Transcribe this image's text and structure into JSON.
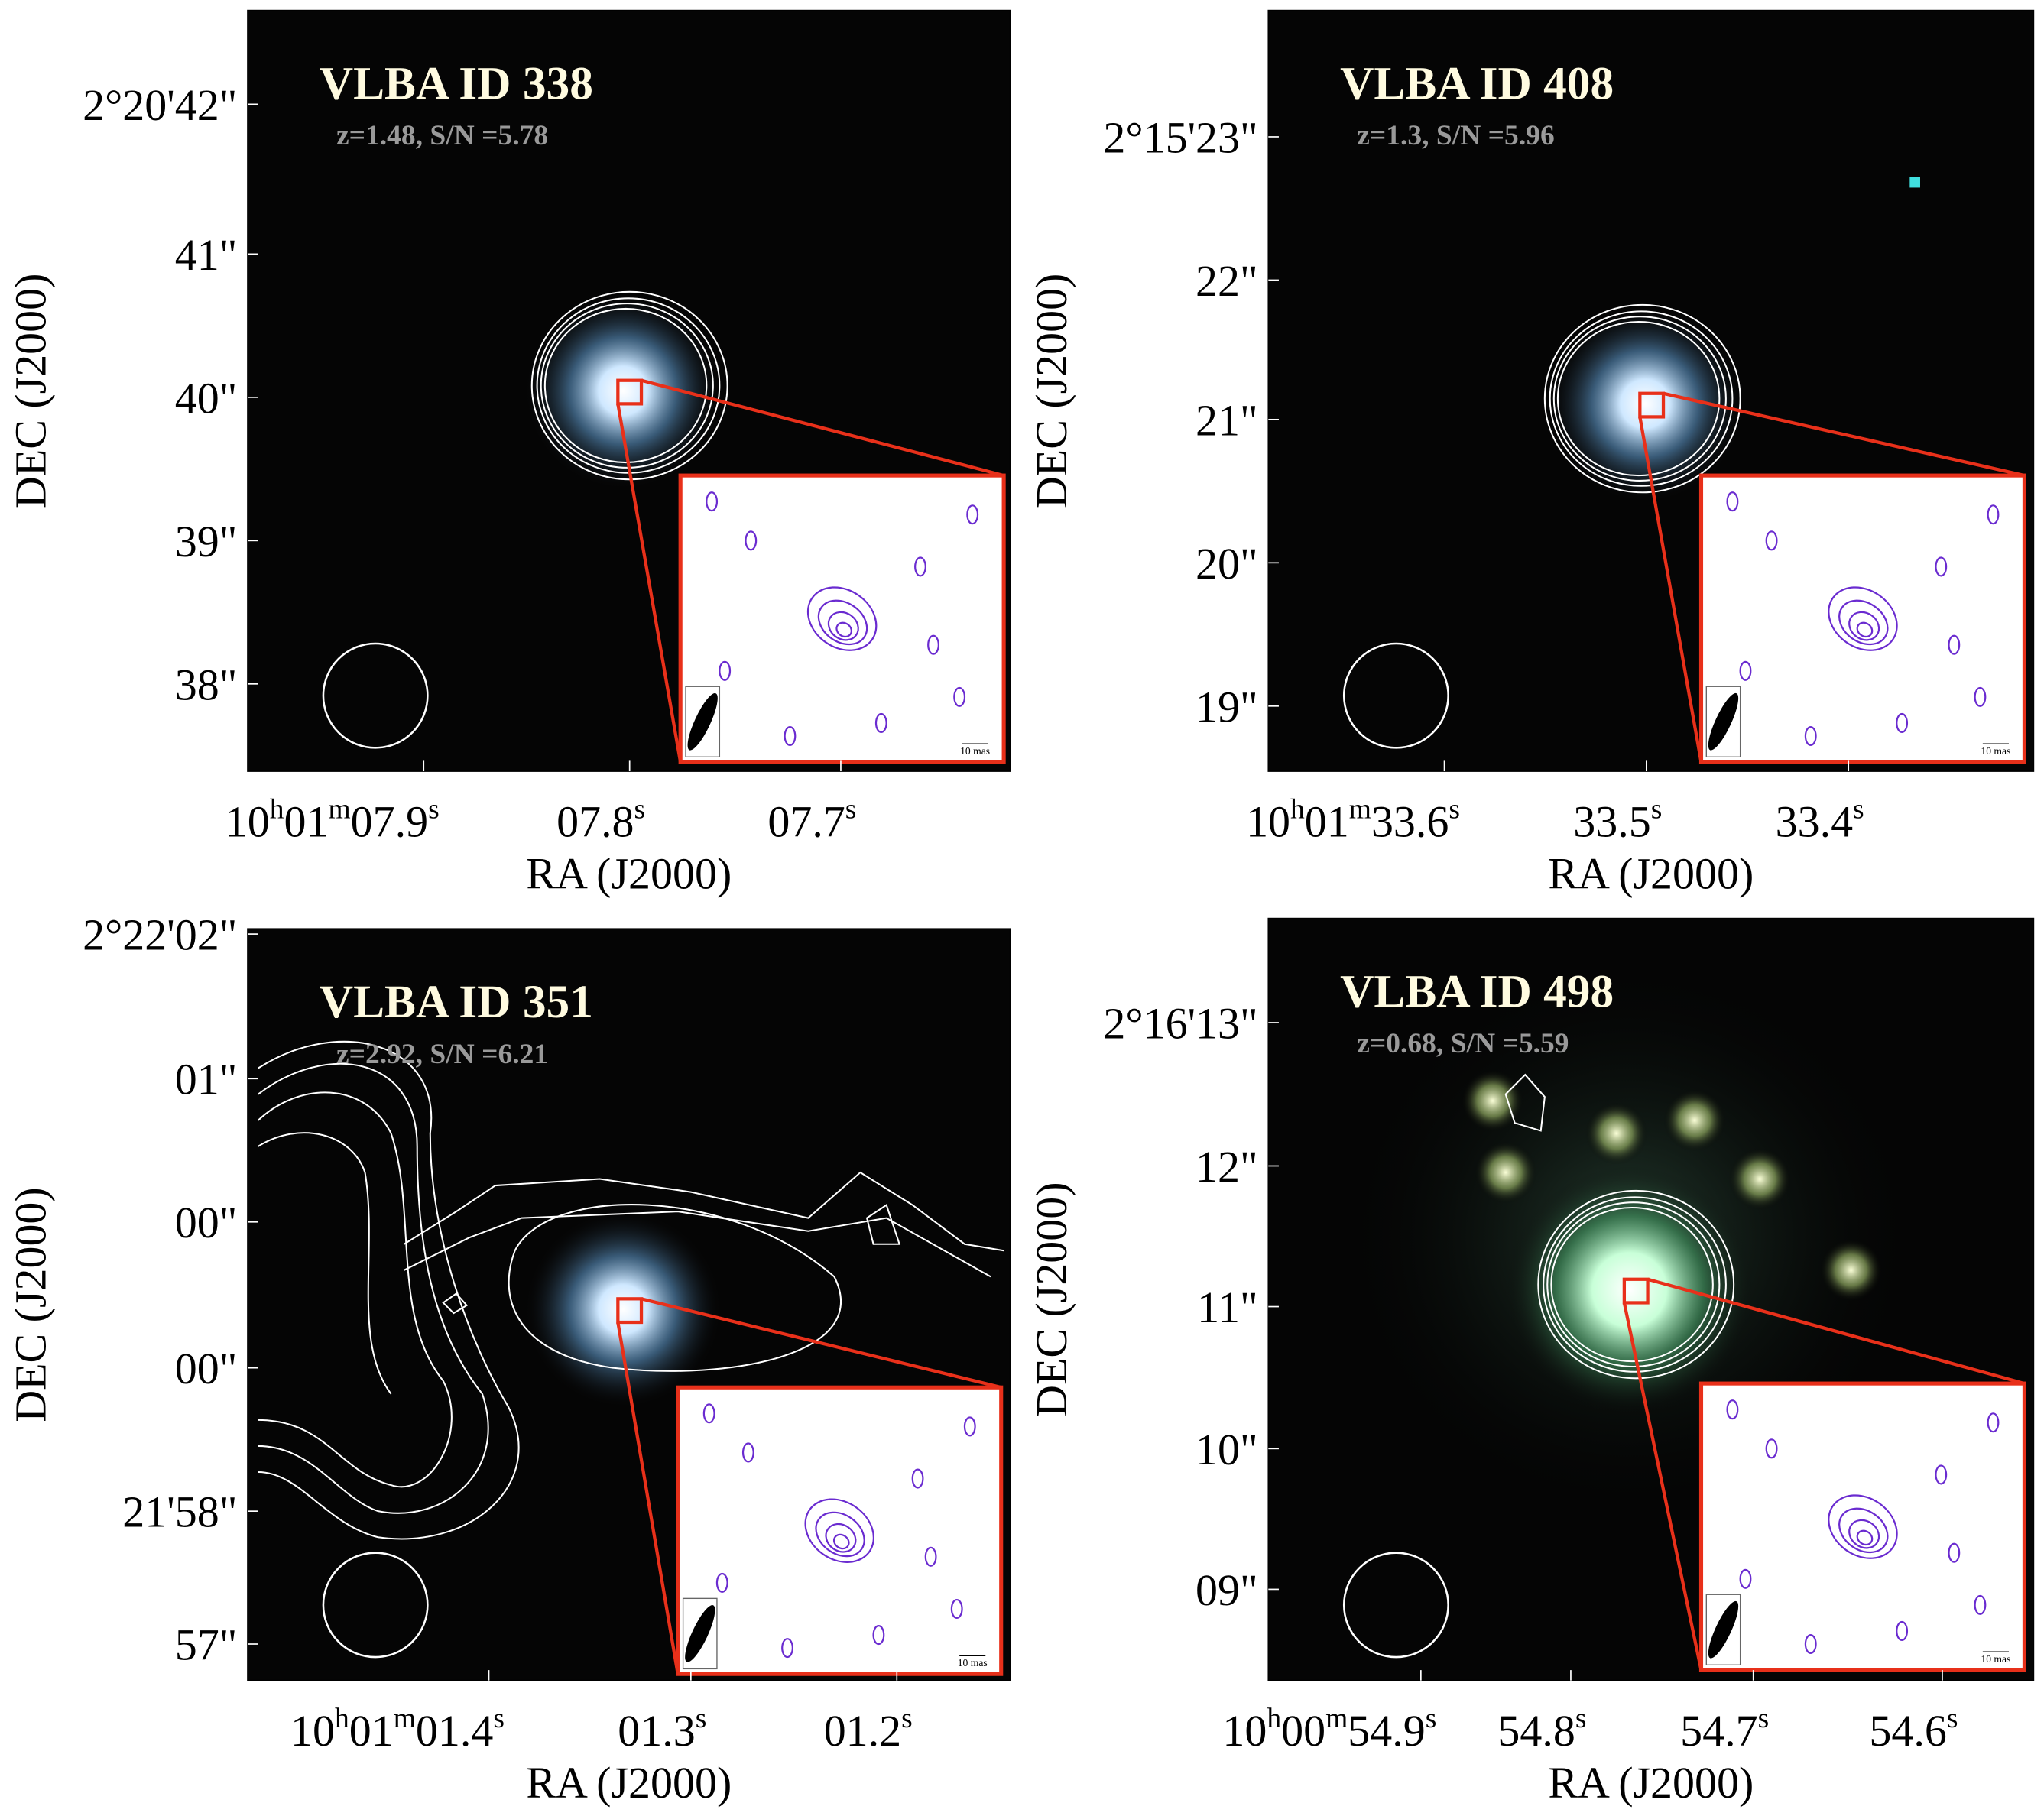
{
  "panels": [
    {
      "title": "VLBA ID  338",
      "subtitle": "z=1.48,  S/N =5.78",
      "y_label": "DEC (J2000)",
      "x_label": "RA (J2000)",
      "scale_label": "10 mas",
      "dec_ticks": [
        "2°20'42\"",
        "41\"",
        "40\"",
        "39\"",
        "38\""
      ],
      "ra_ticks": [
        [
          "10",
          "h",
          "01",
          "m",
          "07.9",
          "s"
        ],
        [
          "07.8",
          "s"
        ],
        [
          "07.7",
          "s"
        ]
      ]
    },
    {
      "title": "VLBA ID  408",
      "subtitle": "z=1.3,  S/N =5.96",
      "y_label": "DEC (J2000)",
      "x_label": "RA (J2000)",
      "scale_label": "10 mas",
      "dec_ticks": [
        "2°15'23\"",
        "22\"",
        "21\"",
        "20\"",
        "19\""
      ],
      "ra_ticks": [
        [
          "10",
          "h",
          "01",
          "m",
          "33.6",
          "s"
        ],
        [
          "33.5",
          "s"
        ],
        [
          "33.4",
          "s"
        ]
      ]
    },
    {
      "title": "VLBA ID  351",
      "subtitle": "z=2.92,  S/N =6.21",
      "y_label": "DEC (J2000)",
      "x_label": "RA (J2000)",
      "scale_label": "10 mas",
      "dec_ticks": [
        "2°22'02\"",
        "01\"",
        "00\"",
        "00\"",
        "21'58\"",
        "57\""
      ],
      "ra_ticks": [
        [
          "10",
          "h",
          "01",
          "m",
          "01.4",
          "s"
        ],
        [
          "01.3",
          "s"
        ],
        [
          "01.2",
          "s"
        ]
      ]
    },
    {
      "title": "VLBA ID  498",
      "subtitle": "z=0.68,  S/N =5.59",
      "y_label": "DEC (J2000)",
      "x_label": "RA (J2000)",
      "scale_label": "10 mas",
      "dec_ticks": [
        "2°16'13\"",
        "12\"",
        "11\"",
        "10\"",
        "09\""
      ],
      "ra_ticks": [
        [
          "10",
          "h",
          "00",
          "m",
          "54.9",
          "s"
        ],
        [
          "54.8",
          "s"
        ],
        [
          "54.7",
          "s"
        ],
        [
          "54.6",
          "s"
        ]
      ]
    }
  ]
}
